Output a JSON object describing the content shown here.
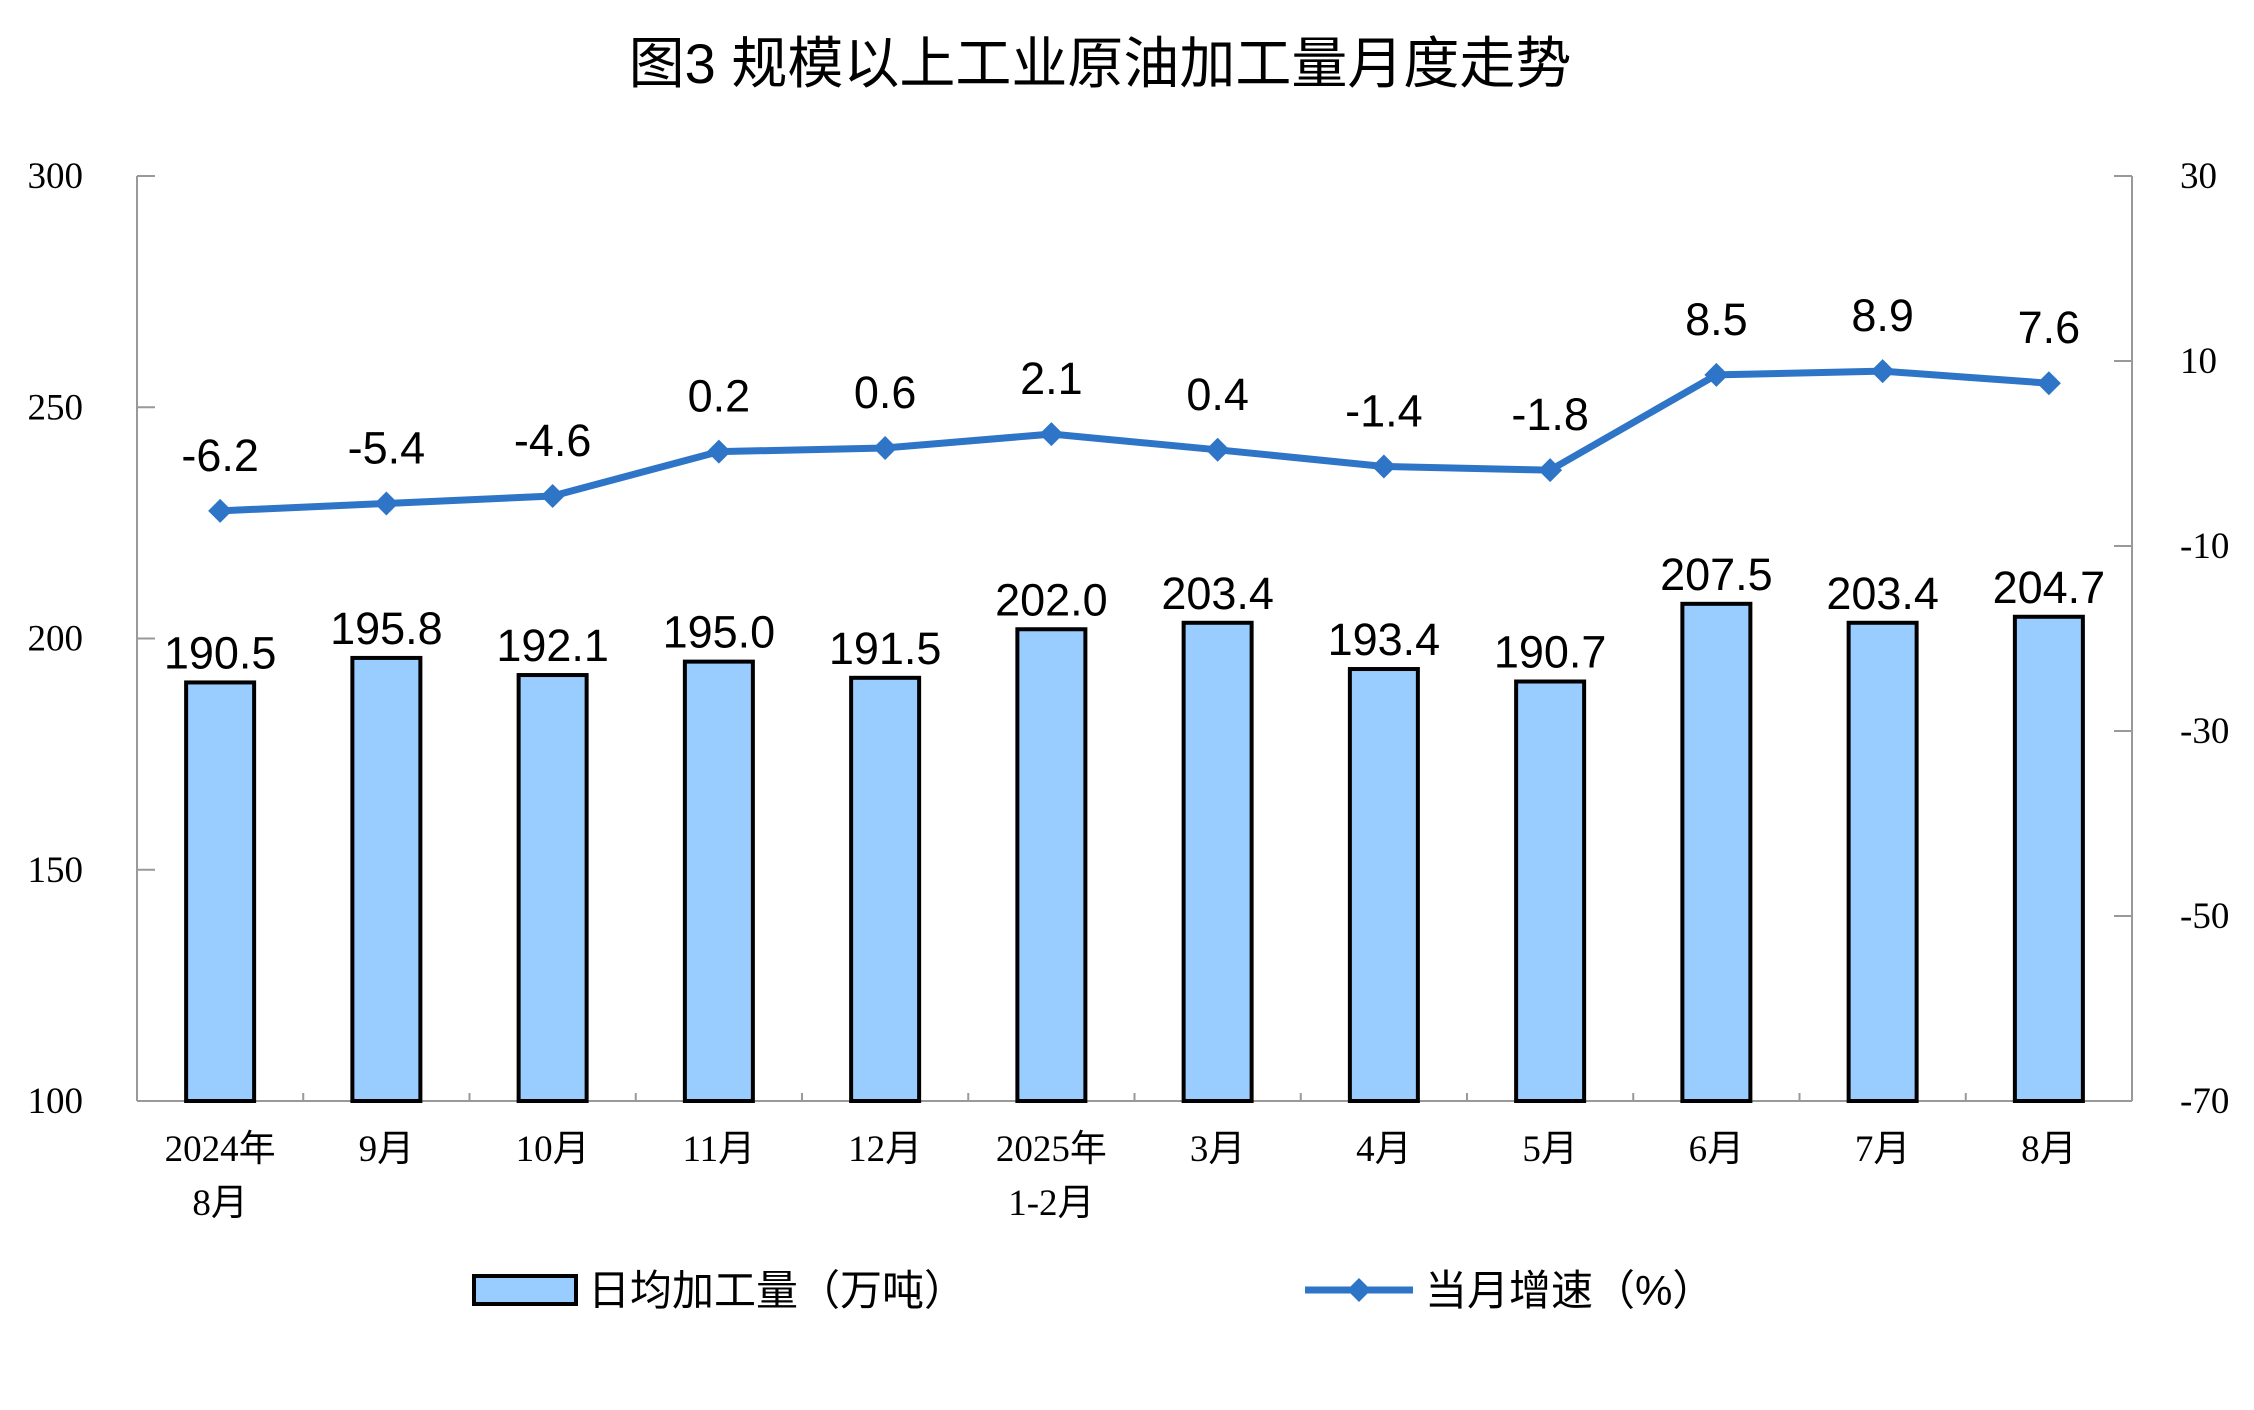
{
  "chart_data": {
    "type": "bar+line",
    "title": "图3  规模以上工业原油加工量月度走势",
    "categories": [
      [
        "2024年",
        "8月"
      ],
      [
        "9月"
      ],
      [
        "10月"
      ],
      [
        "11月"
      ],
      [
        "12月"
      ],
      [
        "2025年",
        "1-2月"
      ],
      [
        "3月"
      ],
      [
        "4月"
      ],
      [
        "5月"
      ],
      [
        "6月"
      ],
      [
        "7月"
      ],
      [
        "8月"
      ]
    ],
    "series": [
      {
        "name": "日均加工量（万吨）",
        "type": "bar",
        "axis": "left",
        "values": [
          190.5,
          195.8,
          192.1,
          195.0,
          191.5,
          202.0,
          203.4,
          193.4,
          190.7,
          207.5,
          203.4,
          204.7
        ],
        "labels": [
          "190.5",
          "195.8",
          "192.1",
          "195.0",
          "191.5",
          "202.0",
          "203.4",
          "193.4",
          "190.7",
          "207.5",
          "203.4",
          "204.7"
        ],
        "color": "#99ccff"
      },
      {
        "name": "当月增速（%）",
        "type": "line",
        "axis": "right",
        "marker": "diamond",
        "values": [
          -6.2,
          -5.4,
          -4.6,
          0.2,
          0.6,
          2.1,
          0.4,
          -1.4,
          -1.8,
          8.5,
          8.9,
          7.6
        ],
        "labels": [
          "-6.2",
          "-5.4",
          "-4.6",
          "0.2",
          "0.6",
          "2.1",
          "0.4",
          "-1.4",
          "-1.8",
          "8.5",
          "8.9",
          "7.6"
        ],
        "color": "#2e75c7"
      }
    ],
    "y_left": {
      "range": [
        100,
        300
      ],
      "ticks": [
        "100",
        "150",
        "200",
        "250",
        "300"
      ]
    },
    "y_right": {
      "range": [
        -70,
        30
      ],
      "ticks": [
        "-70",
        "-50",
        "-30",
        "-10",
        "10",
        "30"
      ]
    },
    "grid": false,
    "legend_placement": "bottom"
  }
}
